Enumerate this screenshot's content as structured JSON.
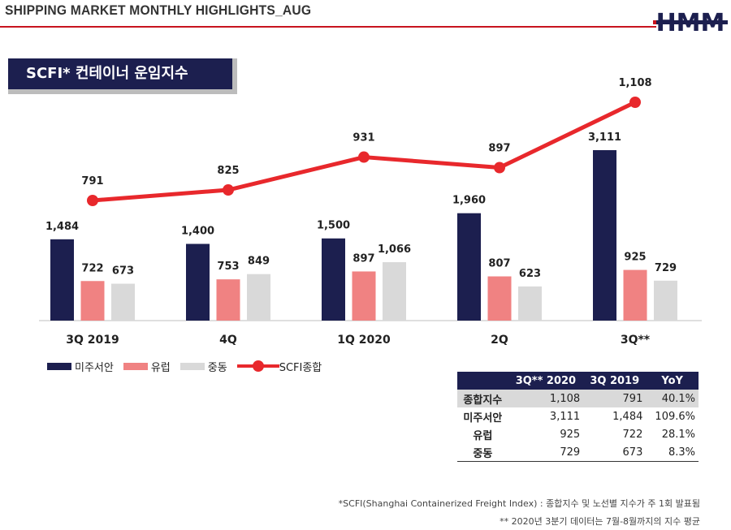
{
  "header": {
    "title": "SHIPPING MARKET MONTHLY HIGHLIGHTS_AUG",
    "logo_text": "HMM"
  },
  "section_title": "SCFI* 컨테이너 운임지수",
  "colors": {
    "navy": "#1c1f4f",
    "salmon": "#f08282",
    "gray": "#d9d9d9",
    "red": "#e8282c",
    "brand_red": "#c8141e"
  },
  "chart_data": {
    "type": "bar",
    "categories": [
      "3Q 2019",
      "4Q",
      "1Q 2020",
      "2Q",
      "3Q**"
    ],
    "series": [
      {
        "name": "미주서안",
        "values": [
          1484,
          1400,
          1500,
          1960,
          3111
        ]
      },
      {
        "name": "유럽",
        "values": [
          722,
          753,
          897,
          807,
          925
        ]
      },
      {
        "name": "중동",
        "values": [
          673,
          849,
          1066,
          623,
          729
        ]
      }
    ],
    "line_series": {
      "name": "SCFI종합",
      "values": [
        791,
        825,
        931,
        897,
        1108
      ],
      "labels": [
        "791",
        "825",
        "931",
        "897",
        "1,108"
      ]
    },
    "bar_labels": [
      [
        "1,484",
        "1,400",
        "1,500",
        "1,960",
        "3,111"
      ],
      [
        "722",
        "753",
        "897",
        "807",
        "925"
      ],
      [
        "673",
        "849",
        "1,066",
        "623",
        "729"
      ]
    ],
    "ylim": [
      0,
      3300
    ],
    "line_ylim": [
      0,
      1400
    ]
  },
  "legend": [
    "미주서안",
    "유럽",
    "중동",
    "SCFI종합"
  ],
  "table": {
    "headers": [
      "",
      "3Q** 2020",
      "3Q 2019",
      "YoY"
    ],
    "rows": [
      [
        "종합지수",
        "1,108",
        "791",
        "40.1%"
      ],
      [
        "미주서안",
        "3,111",
        "1,484",
        "109.6%"
      ],
      [
        "유럽",
        "925",
        "722",
        "28.1%"
      ],
      [
        "중동",
        "729",
        "673",
        "8.3%"
      ]
    ]
  },
  "footnotes": [
    "*SCFI(Shanghai Containerized Freight Index) : 종합지수 및 노선별 지수가 주 1회 발표됨",
    "** 2020년 3분기 데이터는 7월-8월까지의 지수 평균"
  ]
}
